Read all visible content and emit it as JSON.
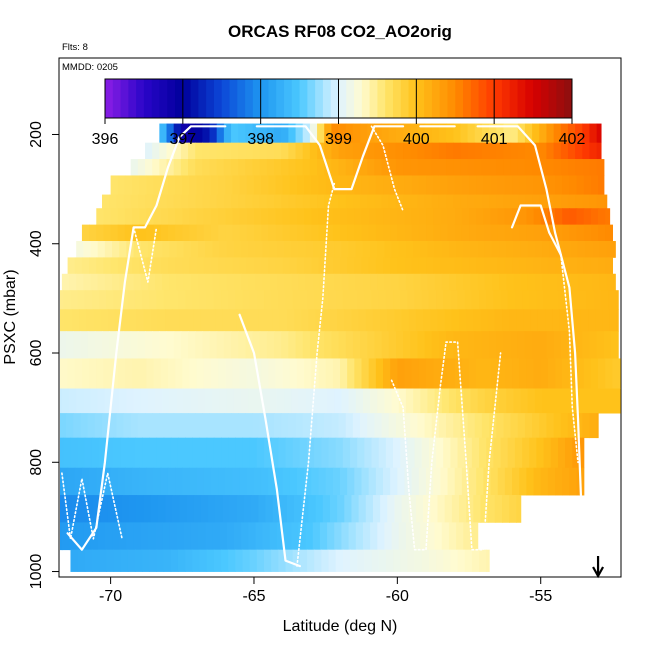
{
  "chart_data": {
    "type": "heatmap",
    "title": "ORCAS RF08 CO2_AO2orig",
    "flights_note": "Flts: 8",
    "date_note": "MMDD: 0205",
    "xlabel": "Latitude (deg N)",
    "ylabel": "PSXC (mbar)",
    "xlim": [
      -71.8,
      -52.2
    ],
    "ylim": [
      1010,
      60
    ],
    "x_ticks": [
      -70,
      -65,
      -60,
      -55
    ],
    "x_tick_labels": [
      "-70",
      "-65",
      "-60",
      "-55"
    ],
    "y_ticks": [
      200,
      400,
      600,
      800,
      1000
    ],
    "y_tick_labels": [
      "200",
      "400",
      "600",
      "800",
      "1000"
    ],
    "colorbar": {
      "min": 396,
      "max": 402,
      "ticks": [
        396,
        397,
        398,
        399,
        400,
        401,
        402
      ],
      "tick_labels": [
        "396",
        "397",
        "398",
        "399",
        "400",
        "401",
        "402"
      ],
      "stops": [
        {
          "v": 396.0,
          "color": "#8c1ee6"
        },
        {
          "v": 396.5,
          "color": "#2a05c8"
        },
        {
          "v": 397.0,
          "color": "#00009c"
        },
        {
          "v": 397.5,
          "color": "#0c47d8"
        },
        {
          "v": 398.0,
          "color": "#1e96f0"
        },
        {
          "v": 398.5,
          "color": "#4bc8ff"
        },
        {
          "v": 398.8,
          "color": "#a8e4ff"
        },
        {
          "v": 399.0,
          "color": "#dff3ff"
        },
        {
          "v": 399.3,
          "color": "#fffbd0"
        },
        {
          "v": 399.6,
          "color": "#ffe56b"
        },
        {
          "v": 400.0,
          "color": "#ffc21a"
        },
        {
          "v": 400.5,
          "color": "#ff8a00"
        },
        {
          "v": 401.0,
          "color": "#ff3a00"
        },
        {
          "v": 401.5,
          "color": "#d60000"
        },
        {
          "v": 402.0,
          "color": "#8c1010"
        }
      ]
    },
    "layers": [
      {
        "p_top": 180,
        "p_bot": 215,
        "lat_min": -68.3,
        "lat_max": -52.9,
        "anchors": [
          [
            -68.3,
            398.6
          ],
          [
            -67.5,
            396.8
          ],
          [
            -66.5,
            397.2
          ],
          [
            -65.8,
            398.5
          ],
          [
            -64.0,
            398.2
          ],
          [
            -63.0,
            399.0
          ],
          [
            -62.3,
            400.5
          ],
          [
            -61.0,
            400.3
          ],
          [
            -58.0,
            400.0
          ],
          [
            -56.0,
            399.5
          ],
          [
            -54.5,
            400.5
          ],
          [
            -53.5,
            401.0
          ],
          [
            -52.9,
            401.5
          ]
        ]
      },
      {
        "p_top": 215,
        "p_bot": 245,
        "lat_min": -68.8,
        "lat_max": -52.9,
        "anchors": [
          [
            -68.8,
            399.0
          ],
          [
            -67.0,
            399.6
          ],
          [
            -64.0,
            399.7
          ],
          [
            -62.0,
            400.3
          ],
          [
            -58.0,
            400.6
          ],
          [
            -55.0,
            400.5
          ],
          [
            -52.9,
            401.2
          ]
        ]
      },
      {
        "p_top": 245,
        "p_bot": 275,
        "lat_min": -69.3,
        "lat_max": -52.8,
        "anchors": [
          [
            -69.3,
            399.1
          ],
          [
            -67.0,
            399.7
          ],
          [
            -63.0,
            400.0
          ],
          [
            -60.0,
            400.4
          ],
          [
            -55.0,
            400.5
          ],
          [
            -52.8,
            400.6
          ]
        ]
      },
      {
        "p_top": 275,
        "p_bot": 310,
        "lat_min": -70.0,
        "lat_max": -52.8,
        "anchors": [
          [
            -70.0,
            399.6
          ],
          [
            -66.0,
            399.8
          ],
          [
            -62.0,
            400.1
          ],
          [
            -58.0,
            400.3
          ],
          [
            -55.0,
            400.4
          ],
          [
            -52.8,
            400.6
          ]
        ]
      },
      {
        "p_top": 310,
        "p_bot": 335,
        "lat_min": -70.3,
        "lat_max": -52.7,
        "anchors": [
          [
            -70.3,
            399.6
          ],
          [
            -66.0,
            399.8
          ],
          [
            -62.0,
            400.0
          ],
          [
            -58.0,
            400.2
          ],
          [
            -55.0,
            400.3
          ],
          [
            -52.7,
            400.4
          ]
        ]
      },
      {
        "p_top": 335,
        "p_bot": 365,
        "lat_min": -70.5,
        "lat_max": -52.6,
        "anchors": [
          [
            -70.5,
            399.6
          ],
          [
            -67.0,
            399.8
          ],
          [
            -63.0,
            400.0
          ],
          [
            -58.0,
            400.2
          ],
          [
            -55.5,
            400.4
          ],
          [
            -54.0,
            400.8
          ],
          [
            -52.6,
            400.6
          ]
        ]
      },
      {
        "p_top": 365,
        "p_bot": 395,
        "lat_min": -71.0,
        "lat_max": -52.5,
        "anchors": [
          [
            -71.0,
            399.8
          ],
          [
            -69.0,
            400.0
          ],
          [
            -66.0,
            399.8
          ],
          [
            -62.0,
            400.0
          ],
          [
            -58.0,
            400.2
          ],
          [
            -55.0,
            400.3
          ],
          [
            -52.5,
            400.5
          ]
        ]
      },
      {
        "p_top": 395,
        "p_bot": 425,
        "lat_min": -71.2,
        "lat_max": -52.4,
        "anchors": [
          [
            -71.2,
            399.2
          ],
          [
            -69.0,
            399.6
          ],
          [
            -66.0,
            399.8
          ],
          [
            -62.0,
            399.9
          ],
          [
            -58.0,
            400.1
          ],
          [
            -55.0,
            400.2
          ],
          [
            -52.4,
            400.3
          ]
        ]
      },
      {
        "p_top": 425,
        "p_bot": 455,
        "lat_min": -71.5,
        "lat_max": -52.5,
        "anchors": [
          [
            -71.5,
            399.5
          ],
          [
            -68.0,
            399.7
          ],
          [
            -64.0,
            399.8
          ],
          [
            -60.0,
            400.0
          ],
          [
            -56.0,
            400.1
          ],
          [
            -52.5,
            400.2
          ]
        ]
      },
      {
        "p_top": 455,
        "p_bot": 485,
        "lat_min": -71.7,
        "lat_max": -52.4,
        "anchors": [
          [
            -71.7,
            399.4
          ],
          [
            -68.0,
            399.6
          ],
          [
            -64.0,
            399.7
          ],
          [
            -60.0,
            399.8
          ],
          [
            -56.0,
            400.0
          ],
          [
            -52.4,
            400.1
          ]
        ]
      },
      {
        "p_top": 485,
        "p_bot": 520,
        "lat_min": -71.9,
        "lat_max": -52.3,
        "anchors": [
          [
            -71.9,
            399.5
          ],
          [
            -68.0,
            399.6
          ],
          [
            -64.0,
            399.7
          ],
          [
            -60.0,
            399.8
          ],
          [
            -56.0,
            400.0
          ],
          [
            -52.3,
            400.1
          ]
        ]
      },
      {
        "p_top": 520,
        "p_bot": 560,
        "lat_min": -72.1,
        "lat_max": -52.3,
        "anchors": [
          [
            -72.1,
            399.6
          ],
          [
            -68.0,
            399.7
          ],
          [
            -64.0,
            399.7
          ],
          [
            -60.0,
            399.9
          ],
          [
            -56.0,
            400.1
          ],
          [
            -52.3,
            400.1
          ]
        ]
      },
      {
        "p_top": 560,
        "p_bot": 610,
        "lat_min": -72.3,
        "lat_max": -52.3,
        "anchors": [
          [
            -72.3,
            399.1
          ],
          [
            -68.0,
            399.3
          ],
          [
            -64.0,
            399.5
          ],
          [
            -61.0,
            399.8
          ],
          [
            -58.0,
            400.1
          ],
          [
            -55.0,
            400.2
          ],
          [
            -52.3,
            400.0
          ]
        ]
      },
      {
        "p_top": 610,
        "p_bot": 665,
        "lat_min": -72.5,
        "lat_max": -52.2,
        "anchors": [
          [
            -72.5,
            399.3
          ],
          [
            -69.0,
            399.4
          ],
          [
            -65.0,
            399.2
          ],
          [
            -62.0,
            399.4
          ],
          [
            -60.0,
            400.3
          ],
          [
            -57.0,
            400.1
          ],
          [
            -55.0,
            400.2
          ],
          [
            -52.2,
            399.9
          ]
        ]
      },
      {
        "p_top": 665,
        "p_bot": 710,
        "lat_min": -72.7,
        "lat_max": -52.2,
        "anchors": [
          [
            -72.7,
            398.9
          ],
          [
            -69.0,
            399.0
          ],
          [
            -65.0,
            399.1
          ],
          [
            -62.0,
            399.0
          ],
          [
            -60.0,
            399.3
          ],
          [
            -57.0,
            399.8
          ],
          [
            -55.0,
            400.0
          ],
          [
            -52.2,
            400.0
          ]
        ]
      },
      {
        "p_top": 710,
        "p_bot": 755,
        "lat_min": -72.8,
        "lat_max": -53.0,
        "anchors": [
          [
            -72.8,
            398.6
          ],
          [
            -69.0,
            398.8
          ],
          [
            -65.0,
            398.8
          ],
          [
            -62.0,
            398.9
          ],
          [
            -60.0,
            399.2
          ],
          [
            -57.0,
            399.6
          ],
          [
            -55.0,
            399.9
          ],
          [
            -53.0,
            400.2
          ]
        ]
      },
      {
        "p_top": 755,
        "p_bot": 810,
        "lat_min": -72.9,
        "lat_max": -53.5,
        "anchors": [
          [
            -72.9,
            398.4
          ],
          [
            -69.0,
            398.5
          ],
          [
            -65.0,
            398.5
          ],
          [
            -62.0,
            398.7
          ],
          [
            -60.0,
            399.0
          ],
          [
            -57.0,
            399.6
          ],
          [
            -55.0,
            400.0
          ],
          [
            -53.5,
            400.4
          ]
        ]
      },
      {
        "p_top": 810,
        "p_bot": 860,
        "lat_min": -73.0,
        "lat_max": -53.5,
        "anchors": [
          [
            -73.0,
            398.1
          ],
          [
            -69.0,
            398.3
          ],
          [
            -65.0,
            398.4
          ],
          [
            -62.0,
            398.6
          ],
          [
            -60.0,
            399.0
          ],
          [
            -57.0,
            399.6
          ],
          [
            -55.0,
            400.1
          ],
          [
            -53.5,
            400.3
          ]
        ]
      },
      {
        "p_top": 860,
        "p_bot": 910,
        "lat_min": -73.1,
        "lat_max": -55.7,
        "anchors": [
          [
            -73.1,
            397.9
          ],
          [
            -69.0,
            398.0
          ],
          [
            -65.0,
            398.2
          ],
          [
            -62.0,
            398.6
          ],
          [
            -60.0,
            399.1
          ],
          [
            -57.0,
            399.6
          ],
          [
            -55.7,
            399.8
          ]
        ]
      },
      {
        "p_top": 910,
        "p_bot": 960,
        "lat_min": -73.2,
        "lat_max": -57.2,
        "anchors": [
          [
            -73.2,
            398.0
          ],
          [
            -70.0,
            398.1
          ],
          [
            -66.0,
            398.2
          ],
          [
            -63.0,
            398.5
          ],
          [
            -60.0,
            399.1
          ],
          [
            -57.2,
            399.5
          ]
        ]
      },
      {
        "p_top": 960,
        "p_bot": 1000,
        "lat_min": -71.4,
        "lat_max": -56.8,
        "anchors": [
          [
            -71.4,
            398.2
          ],
          [
            -68.0,
            398.3
          ],
          [
            -65.0,
            398.6
          ],
          [
            -62.0,
            399.0
          ],
          [
            -59.0,
            399.2
          ],
          [
            -56.8,
            399.4
          ]
        ]
      }
    ],
    "tracks": [
      {
        "dashed": false,
        "points": [
          [
            -71.5,
            930
          ],
          [
            -71.0,
            960
          ],
          [
            -70.5,
            920
          ],
          [
            -70.2,
            800
          ],
          [
            -69.8,
            600
          ],
          [
            -69.5,
            470
          ],
          [
            -69.2,
            370
          ],
          [
            -68.8,
            370
          ],
          [
            -68.4,
            330
          ],
          [
            -68.0,
            260
          ],
          [
            -67.6,
            205
          ],
          [
            -67.2,
            185
          ],
          [
            -66.0,
            185
          ]
        ]
      },
      {
        "dashed": false,
        "points": [
          [
            -64.9,
            185
          ],
          [
            -63.2,
            185
          ],
          [
            -62.7,
            220
          ],
          [
            -62.2,
            300
          ],
          [
            -61.6,
            300
          ],
          [
            -61.2,
            240
          ],
          [
            -60.8,
            185
          ],
          [
            -59.8,
            185
          ]
        ]
      },
      {
        "dashed": false,
        "points": [
          [
            -59.2,
            185
          ],
          [
            -58.0,
            185
          ]
        ]
      },
      {
        "dashed": false,
        "points": [
          [
            -57.2,
            185
          ],
          [
            -55.8,
            185
          ],
          [
            -55.2,
            220
          ],
          [
            -54.8,
            300
          ],
          [
            -54.5,
            380
          ],
          [
            -54.0,
            480
          ],
          [
            -53.8,
            600
          ],
          [
            -53.7,
            720
          ],
          [
            -53.6,
            860
          ]
        ]
      },
      {
        "dashed": false,
        "points": [
          [
            -56.0,
            370
          ],
          [
            -55.7,
            330
          ],
          [
            -55.0,
            330
          ],
          [
            -54.7,
            380
          ],
          [
            -54.3,
            420
          ]
        ]
      },
      {
        "dashed": false,
        "points": [
          [
            -65.5,
            530
          ],
          [
            -65.0,
            600
          ],
          [
            -64.6,
            720
          ],
          [
            -64.2,
            850
          ],
          [
            -63.9,
            980
          ],
          [
            -63.4,
            990
          ]
        ]
      },
      {
        "dashed": true,
        "points": [
          [
            -71.7,
            820
          ],
          [
            -71.4,
            940
          ],
          [
            -71.0,
            830
          ],
          [
            -70.6,
            940
          ],
          [
            -70.1,
            820
          ],
          [
            -69.6,
            940
          ]
        ]
      },
      {
        "dashed": true,
        "points": [
          [
            -69.2,
            370
          ],
          [
            -68.7,
            470
          ],
          [
            -68.4,
            370
          ]
        ]
      },
      {
        "dashed": true,
        "points": [
          [
            -63.5,
            990
          ],
          [
            -63.1,
            800
          ],
          [
            -62.8,
            600
          ],
          [
            -62.6,
            500
          ],
          [
            -62.4,
            330
          ],
          [
            -62.2,
            290
          ]
        ]
      },
      {
        "dashed": true,
        "points": [
          [
            -60.2,
            650
          ],
          [
            -59.8,
            700
          ],
          [
            -59.6,
            850
          ],
          [
            -59.4,
            960
          ],
          [
            -59.0,
            960
          ],
          [
            -58.8,
            800
          ],
          [
            -58.5,
            660
          ],
          [
            -58.3,
            580
          ],
          [
            -57.9,
            580
          ],
          [
            -57.6,
            800
          ],
          [
            -57.4,
            960
          ],
          [
            -57.0,
            960
          ],
          [
            -56.8,
            800
          ],
          [
            -56.4,
            600
          ]
        ]
      },
      {
        "dashed": true,
        "points": [
          [
            -60.9,
            185
          ],
          [
            -60.5,
            220
          ],
          [
            -60.1,
            300
          ],
          [
            -59.8,
            340
          ]
        ]
      },
      {
        "dashed": true,
        "points": [
          [
            -54.3,
            420
          ],
          [
            -54.0,
            560
          ],
          [
            -53.9,
            700
          ],
          [
            -53.7,
            800
          ]
        ]
      }
    ],
    "arrow_lat": -53.0
  }
}
